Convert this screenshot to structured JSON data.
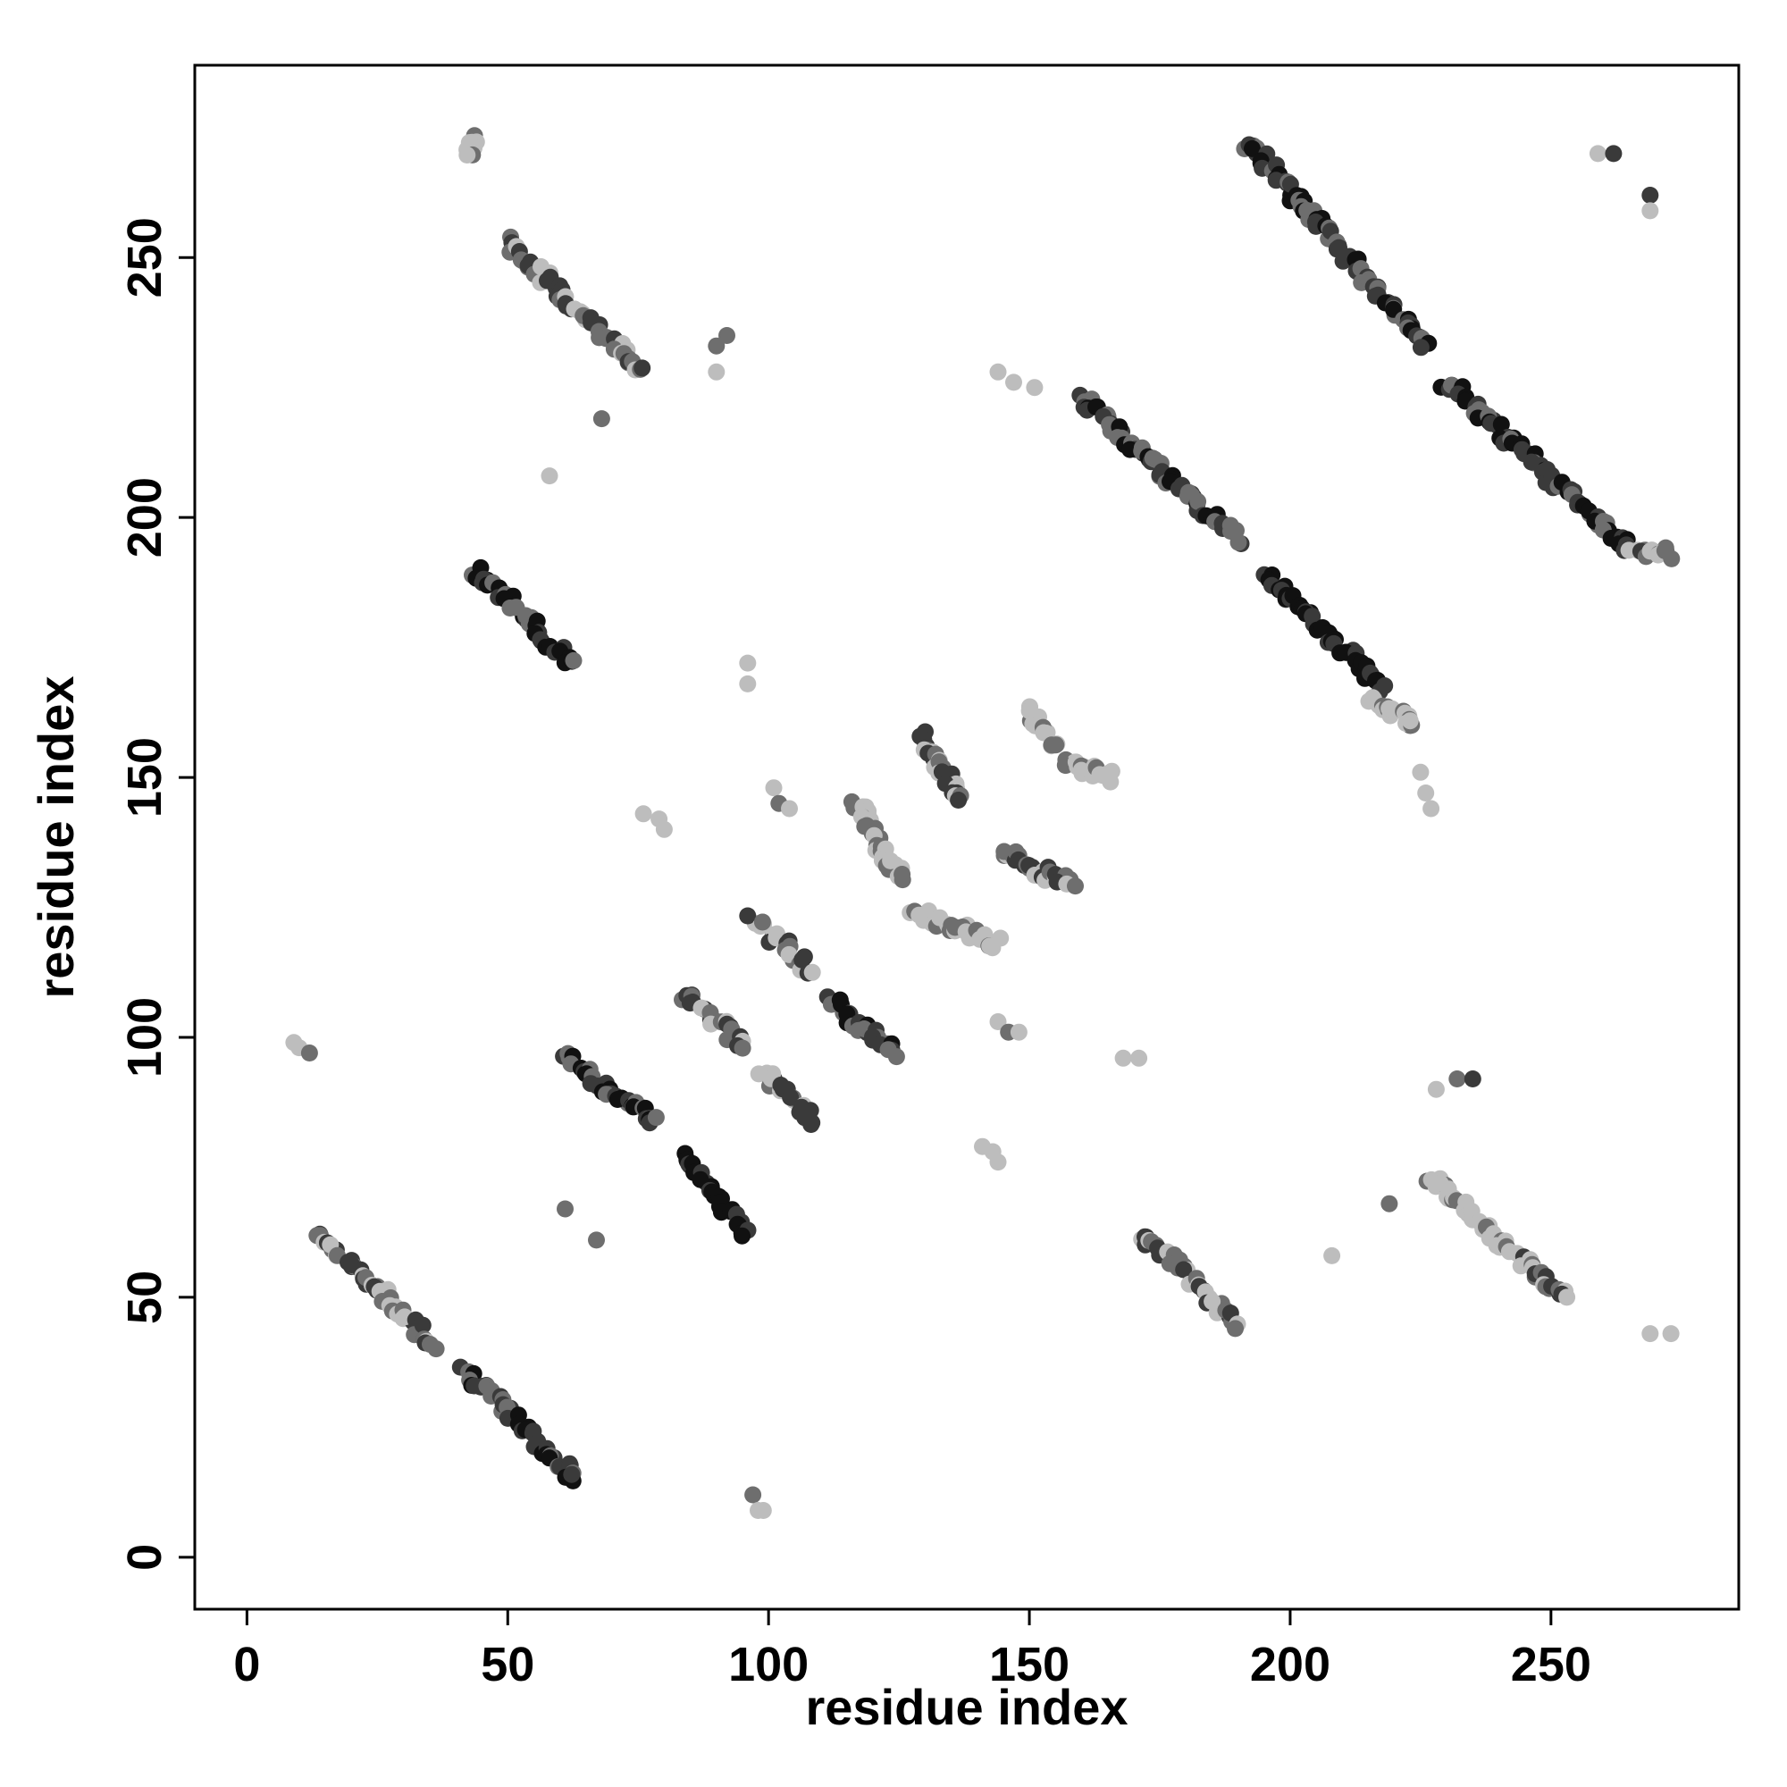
{
  "chart_data": {
    "type": "scatter",
    "title": "",
    "xlabel": "residue index",
    "ylabel": "residue index",
    "xlim": [
      -10,
      286
    ],
    "ylim": [
      -10,
      287
    ],
    "xticks": [
      0,
      50,
      100,
      150,
      200,
      250
    ],
    "yticks": [
      0,
      50,
      100,
      150,
      200,
      250
    ],
    "grid": false,
    "legend": "none",
    "colors": {
      "black": "#111111",
      "dark": "#3a3a3a",
      "mid": "#6e6e6e",
      "light": "#bdbdbd"
    },
    "segments": [
      {
        "tone": "mid",
        "x1": 14,
        "y1": 62,
        "x2": 36,
        "y2": 41
      },
      {
        "tone": "dark",
        "x1": 42,
        "y1": 36,
        "x2": 63,
        "y2": 15
      },
      {
        "tone": "light",
        "x1": 43,
        "y1": 273,
        "x2": 43,
        "y2": 270
      },
      {
        "tone": "mid",
        "x1": 50,
        "y1": 253,
        "x2": 76,
        "y2": 228
      },
      {
        "tone": "dark",
        "x1": 44,
        "y1": 190,
        "x2": 62,
        "y2": 172
      },
      {
        "tone": "dark",
        "x1": 61,
        "y1": 96,
        "x2": 78,
        "y2": 84
      },
      {
        "tone": "black",
        "x1": 84,
        "y1": 77,
        "x2": 96,
        "y2": 62
      },
      {
        "tone": "mid",
        "x1": 84,
        "y1": 108,
        "x2": 95,
        "y2": 99
      },
      {
        "tone": "mid",
        "x1": 97,
        "y1": 123,
        "x2": 108,
        "y2": 113
      },
      {
        "tone": "mid",
        "x1": 99,
        "y1": 93,
        "x2": 109,
        "y2": 84
      },
      {
        "tone": "dark",
        "x1": 112,
        "y1": 107,
        "x2": 124,
        "y2": 97
      },
      {
        "tone": "light",
        "x1": 117,
        "y1": 145,
        "x2": 125,
        "y2": 131
      },
      {
        "tone": "mid",
        "x1": 129,
        "y1": 158,
        "x2": 137,
        "y2": 146
      },
      {
        "tone": "light",
        "x1": 128,
        "y1": 124,
        "x2": 144,
        "y2": 118
      },
      {
        "tone": "mid",
        "x1": 145,
        "y1": 136,
        "x2": 158,
        "y2": 129
      },
      {
        "tone": "light",
        "x1": 150,
        "y1": 163,
        "x2": 155,
        "y2": 156
      },
      {
        "tone": "light",
        "x1": 157,
        "y1": 153,
        "x2": 166,
        "y2": 150
      },
      {
        "tone": "dark",
        "x1": 160,
        "y1": 223,
        "x2": 190,
        "y2": 196
      },
      {
        "tone": "black",
        "x1": 196,
        "y1": 189,
        "x2": 218,
        "y2": 167
      },
      {
        "tone": "light",
        "x1": 215,
        "y1": 165,
        "x2": 224,
        "y2": 160
      },
      {
        "tone": "dark",
        "x1": 192,
        "y1": 272,
        "x2": 226,
        "y2": 233
      },
      {
        "tone": "dark",
        "x1": 230,
        "y1": 226,
        "x2": 265,
        "y2": 194
      },
      {
        "tone": "mid",
        "x1": 266,
        "y1": 194,
        "x2": 273,
        "y2": 193
      },
      {
        "tone": "mid",
        "x1": 172,
        "y1": 62,
        "x2": 190,
        "y2": 45
      },
      {
        "tone": "light",
        "x1": 227,
        "y1": 73,
        "x2": 242,
        "y2": 59
      },
      {
        "tone": "mid",
        "x1": 243,
        "y1": 58,
        "x2": 253,
        "y2": 50
      }
    ],
    "points": [
      {
        "x": 9,
        "y": 99,
        "tone": "light"
      },
      {
        "x": 10,
        "y": 98,
        "tone": "light"
      },
      {
        "x": 12,
        "y": 97,
        "tone": "mid"
      },
      {
        "x": 68,
        "y": 219,
        "tone": "mid"
      },
      {
        "x": 58,
        "y": 208,
        "tone": "light"
      },
      {
        "x": 90,
        "y": 233,
        "tone": "mid"
      },
      {
        "x": 92,
        "y": 235,
        "tone": "mid"
      },
      {
        "x": 90,
        "y": 228,
        "tone": "light"
      },
      {
        "x": 96,
        "y": 172,
        "tone": "light"
      },
      {
        "x": 96,
        "y": 168,
        "tone": "light"
      },
      {
        "x": 76,
        "y": 143,
        "tone": "light"
      },
      {
        "x": 79,
        "y": 142,
        "tone": "light"
      },
      {
        "x": 80,
        "y": 140,
        "tone": "light"
      },
      {
        "x": 101,
        "y": 148,
        "tone": "light"
      },
      {
        "x": 102,
        "y": 145,
        "tone": "mid"
      },
      {
        "x": 104,
        "y": 144,
        "tone": "light"
      },
      {
        "x": 61,
        "y": 67,
        "tone": "mid"
      },
      {
        "x": 67,
        "y": 61,
        "tone": "mid"
      },
      {
        "x": 97,
        "y": 12,
        "tone": "mid"
      },
      {
        "x": 98,
        "y": 9,
        "tone": "light"
      },
      {
        "x": 99,
        "y": 9,
        "tone": "light"
      },
      {
        "x": 141,
        "y": 79,
        "tone": "light"
      },
      {
        "x": 143,
        "y": 78,
        "tone": "light"
      },
      {
        "x": 144,
        "y": 76,
        "tone": "light"
      },
      {
        "x": 144,
        "y": 103,
        "tone": "light"
      },
      {
        "x": 146,
        "y": 101,
        "tone": "mid"
      },
      {
        "x": 148,
        "y": 101,
        "tone": "light"
      },
      {
        "x": 144,
        "y": 228,
        "tone": "light"
      },
      {
        "x": 147,
        "y": 226,
        "tone": "light"
      },
      {
        "x": 151,
        "y": 225,
        "tone": "light"
      },
      {
        "x": 168,
        "y": 96,
        "tone": "light"
      },
      {
        "x": 171,
        "y": 96,
        "tone": "light"
      },
      {
        "x": 208,
        "y": 58,
        "tone": "light"
      },
      {
        "x": 219,
        "y": 68,
        "tone": "mid"
      },
      {
        "x": 225,
        "y": 151,
        "tone": "light"
      },
      {
        "x": 226,
        "y": 147,
        "tone": "light"
      },
      {
        "x": 227,
        "y": 144,
        "tone": "light"
      },
      {
        "x": 228,
        "y": 90,
        "tone": "light"
      },
      {
        "x": 232,
        "y": 92,
        "tone": "mid"
      },
      {
        "x": 235,
        "y": 92,
        "tone": "dark"
      },
      {
        "x": 259,
        "y": 270,
        "tone": "light"
      },
      {
        "x": 262,
        "y": 270,
        "tone": "dark"
      },
      {
        "x": 269,
        "y": 262,
        "tone": "dark"
      },
      {
        "x": 269,
        "y": 259,
        "tone": "light"
      },
      {
        "x": 269,
        "y": 43,
        "tone": "light"
      },
      {
        "x": 273,
        "y": 43,
        "tone": "light"
      }
    ]
  }
}
